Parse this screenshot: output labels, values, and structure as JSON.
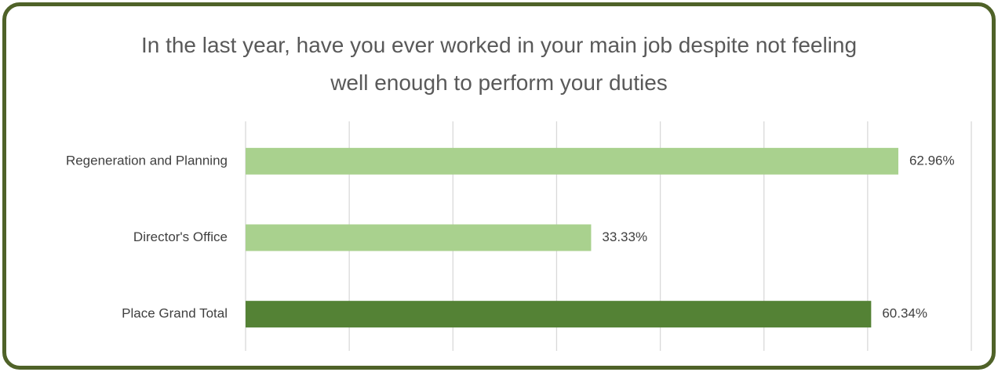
{
  "chart_data": {
    "type": "hbar",
    "title": "In the last year, have you ever worked in your main job despite not feeling well enough to perform your duties",
    "categories": [
      "Regeneration and Planning",
      "Director's Office",
      "Place Grand Total"
    ],
    "values": [
      62.96,
      33.33,
      60.34
    ],
    "value_labels": [
      "62.96%",
      "33.33%",
      "60.34%"
    ],
    "colors": [
      "#a9d18e",
      "#a9d18e",
      "#548235"
    ],
    "xlim": [
      0,
      70
    ],
    "xticks": [
      0,
      10,
      20,
      30,
      40,
      50,
      60,
      70
    ],
    "grid": true
  }
}
